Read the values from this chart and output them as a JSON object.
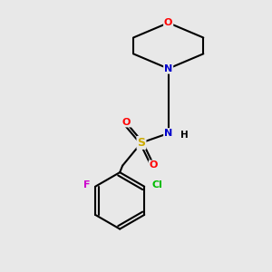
{
  "background_color": "#e8e8e8",
  "bond_color": "#000000",
  "bond_width": 1.5,
  "atom_colors": {
    "O": "#ff0000",
    "N_morpholine": "#0000cc",
    "N_sulfonamide": "#0000cc",
    "S": "#ccaa00",
    "F": "#cc00cc",
    "Cl": "#00bb00",
    "C": "#000000",
    "H": "#000000"
  },
  "figsize": [
    3.0,
    3.0
  ],
  "dpi": 100
}
